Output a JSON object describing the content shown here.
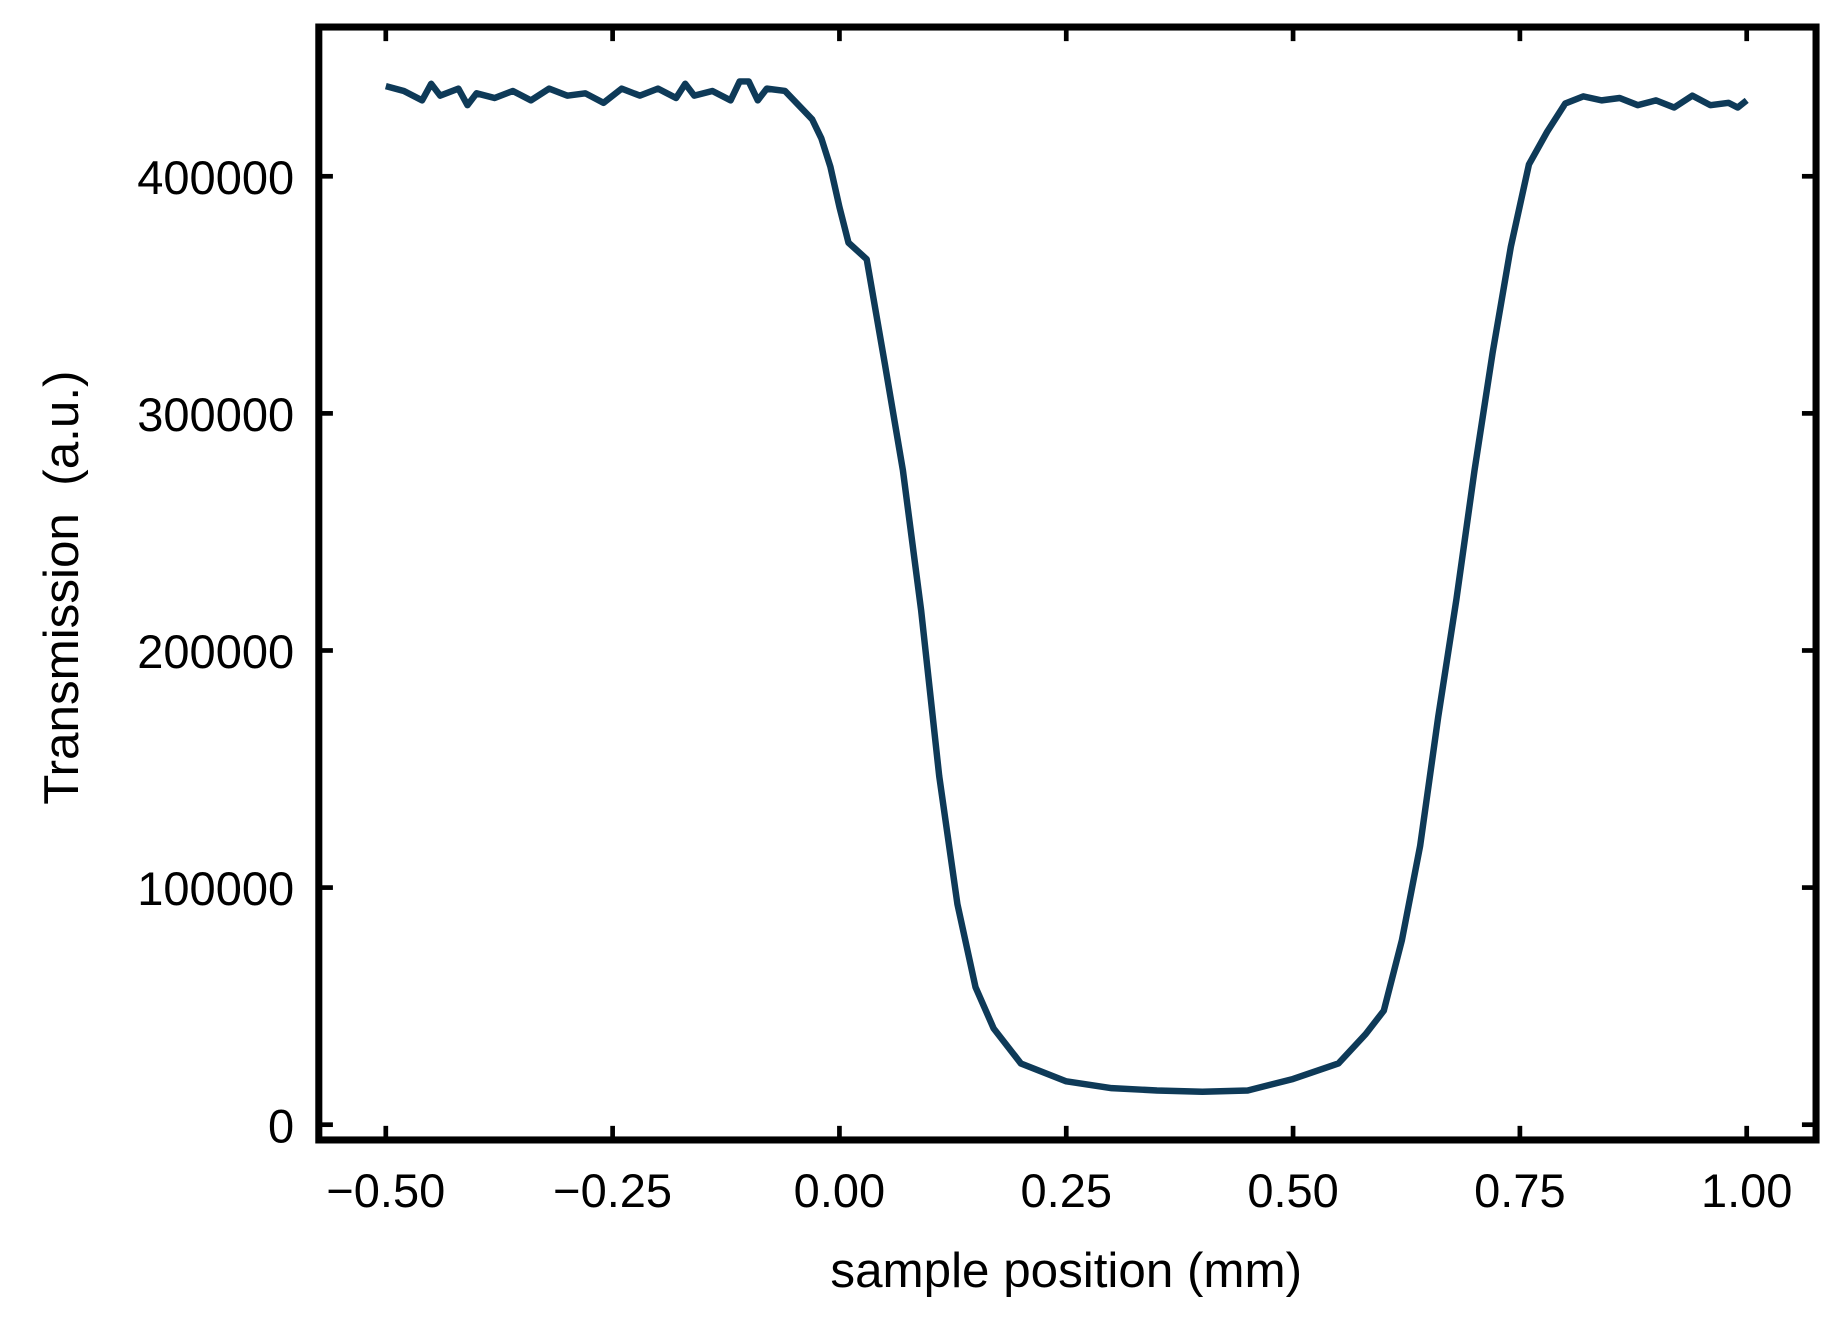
{
  "chart_data": {
    "type": "line",
    "title": "",
    "xlabel": "sample position (mm)",
    "ylabel": "Transmission  (a.u.)",
    "xlim": [
      -0.57,
      1.08
    ],
    "ylim": [
      -7000,
      462000
    ],
    "xticks": [
      -0.5,
      -0.25,
      0.0,
      0.25,
      0.5,
      0.75,
      1.0
    ],
    "xtick_labels": [
      "−0.50",
      "−0.25",
      "0.00",
      "0.25",
      "0.50",
      "0.75",
      "1.00"
    ],
    "yticks": [
      0,
      100000,
      200000,
      300000,
      400000
    ],
    "ytick_labels": [
      "0",
      "100000",
      "200000",
      "300000",
      "400000"
    ],
    "grid": false,
    "line_color": "#0e3a58",
    "series": [
      {
        "x": [
          -0.5,
          -0.48,
          -0.46,
          -0.45,
          -0.44,
          -0.42,
          -0.41,
          -0.4,
          -0.38,
          -0.36,
          -0.34,
          -0.32,
          -0.3,
          -0.28,
          -0.26,
          -0.24,
          -0.22,
          -0.2,
          -0.18,
          -0.17,
          -0.16,
          -0.14,
          -0.12,
          -0.11,
          -0.1,
          -0.09,
          -0.08,
          -0.06,
          -0.04,
          -0.03,
          -0.02,
          -0.01,
          0.0,
          0.01,
          0.03,
          0.05,
          0.07,
          0.09,
          0.11,
          0.13,
          0.15,
          0.17,
          0.2,
          0.25,
          0.3,
          0.35,
          0.4,
          0.45,
          0.5,
          0.55,
          0.58,
          0.6,
          0.62,
          0.64,
          0.66,
          0.68,
          0.7,
          0.72,
          0.74,
          0.76,
          0.78,
          0.8,
          0.82,
          0.84,
          0.86,
          0.88,
          0.9,
          0.92,
          0.94,
          0.96,
          0.98,
          0.99,
          1.0
        ],
        "y": [
          438000,
          436000,
          432000,
          439000,
          434000,
          437000,
          430000,
          435000,
          433000,
          436000,
          432000,
          437000,
          434000,
          435000,
          431000,
          437000,
          434000,
          437000,
          433000,
          439000,
          434000,
          436000,
          432000,
          440000,
          440000,
          432000,
          437000,
          436000,
          428000,
          424000,
          416000,
          404000,
          387000,
          372000,
          365000,
          321000,
          276000,
          217000,
          147000,
          93000,
          58000,
          40600,
          25800,
          18300,
          15400,
          14400,
          13900,
          14400,
          19300,
          25800,
          38200,
          48100,
          77800,
          117500,
          172000,
          221600,
          276000,
          325600,
          370300,
          405000,
          418800,
          430700,
          433700,
          432000,
          433000,
          430000,
          432000,
          429000,
          434000,
          430000,
          431000,
          429000,
          432000
        ]
      }
    ]
  }
}
